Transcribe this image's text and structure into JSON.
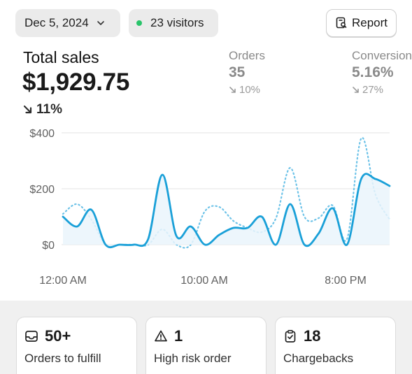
{
  "header": {
    "date_label": "Dec 5, 2024",
    "visitors_label": "23 visitors",
    "report_label": "Report"
  },
  "summary": {
    "title": "Total sales",
    "value": "$1,929.75",
    "change": "11%"
  },
  "metrics": {
    "orders": {
      "label": "Orders",
      "value": "35",
      "change": "10%"
    },
    "conversion": {
      "label": "Conversion",
      "value": "5.16%",
      "change": "27%"
    }
  },
  "chart_data": {
    "type": "line",
    "y_ticks": [
      "$400",
      "$200",
      "$0"
    ],
    "x_ticks": [
      "12:00 AM",
      "10:00 AM",
      "8:00 PM"
    ],
    "ylim": [
      0,
      400
    ],
    "grid": true,
    "series": [
      {
        "style": "solid",
        "color": "#1aa0d8",
        "x": [
          0,
          1,
          2,
          3,
          4,
          5,
          6,
          7,
          8,
          9,
          10,
          11,
          12,
          13,
          14,
          15,
          16,
          17,
          18,
          19,
          20,
          21,
          22,
          23
        ],
        "values": [
          100,
          65,
          125,
          0,
          0,
          0,
          20,
          250,
          30,
          65,
          0,
          35,
          60,
          60,
          100,
          0,
          145,
          0,
          40,
          130,
          0,
          235,
          235,
          210
        ]
      },
      {
        "style": "dotted",
        "color": "#6ec3e8",
        "x": [
          0,
          1,
          2,
          3,
          4,
          5,
          6,
          7,
          8,
          9,
          10,
          11,
          12,
          13,
          14,
          15,
          16,
          17,
          18,
          19,
          20,
          21,
          22,
          23
        ],
        "values": [
          110,
          145,
          90,
          0,
          0,
          0,
          0,
          55,
          0,
          0,
          120,
          135,
          85,
          60,
          45,
          95,
          275,
          100,
          95,
          140,
          20,
          380,
          180,
          90
        ]
      }
    ]
  },
  "cards": [
    {
      "value": "50+",
      "label": "Orders to fulfill",
      "icon": "inbox-icon"
    },
    {
      "value": "1",
      "label": "High risk order",
      "icon": "warning-icon"
    },
    {
      "value": "18",
      "label": "Chargebacks",
      "icon": "clipboard-check-icon"
    }
  ]
}
